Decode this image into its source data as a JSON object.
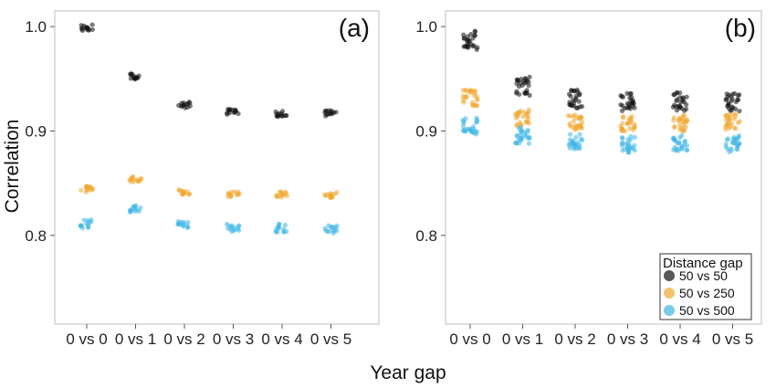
{
  "figure": {
    "shared_xlabel": "Year gap",
    "shared_ylabel": "Correlation"
  },
  "legend": {
    "title": "Distance gap",
    "placement": "bottom-right of panel (b)",
    "entries": [
      {
        "label": "50 vs 50",
        "color": "#111111"
      },
      {
        "label": "50 vs 250",
        "color": "#f0a830"
      },
      {
        "label": "50 vs 500",
        "color": "#3fb6e6"
      }
    ]
  },
  "chart_data": [
    {
      "type": "scatter",
      "panel": "(a)",
      "categories": [
        "0 vs 0",
        "0 vs 1",
        "0 vs 2",
        "0 vs 3",
        "0 vs 4",
        "0 vs 5"
      ],
      "yticks": [
        "0.8",
        "0.9",
        "1.0"
      ],
      "ylim": [
        0.715,
        1.015
      ],
      "grid": false,
      "series": [
        {
          "name": "50 vs 50",
          "color": "#111111",
          "values": [
            0.999,
            0.952,
            0.925,
            0.918,
            0.917,
            0.917
          ],
          "spread": 0.003
        },
        {
          "name": "50 vs 250",
          "color": "#f0a830",
          "values": [
            0.844,
            0.854,
            0.842,
            0.839,
            0.839,
            0.839
          ],
          "spread": 0.003
        },
        {
          "name": "50 vs 500",
          "color": "#3fb6e6",
          "values": [
            0.811,
            0.825,
            0.811,
            0.807,
            0.807,
            0.806
          ],
          "spread": 0.004
        }
      ]
    },
    {
      "type": "scatter",
      "panel": "(b)",
      "categories": [
        "0 vs 0",
        "0 vs 1",
        "0 vs 2",
        "0 vs 3",
        "0 vs 4",
        "0 vs 5"
      ],
      "yticks": [
        "0.8",
        "0.9",
        "1.0"
      ],
      "ylim": [
        0.715,
        1.015
      ],
      "grid": false,
      "series": [
        {
          "name": "50 vs 50",
          "color": "#111111",
          "values": [
            0.987,
            0.943,
            0.931,
            0.928,
            0.928,
            0.928
          ],
          "spread": 0.009
        },
        {
          "name": "50 vs 250",
          "color": "#f0a830",
          "values": [
            0.932,
            0.913,
            0.909,
            0.907,
            0.908,
            0.909
          ],
          "spread": 0.008
        },
        {
          "name": "50 vs 500",
          "color": "#3fb6e6",
          "values": [
            0.905,
            0.896,
            0.889,
            0.887,
            0.889,
            0.888
          ],
          "spread": 0.008
        }
      ]
    }
  ]
}
